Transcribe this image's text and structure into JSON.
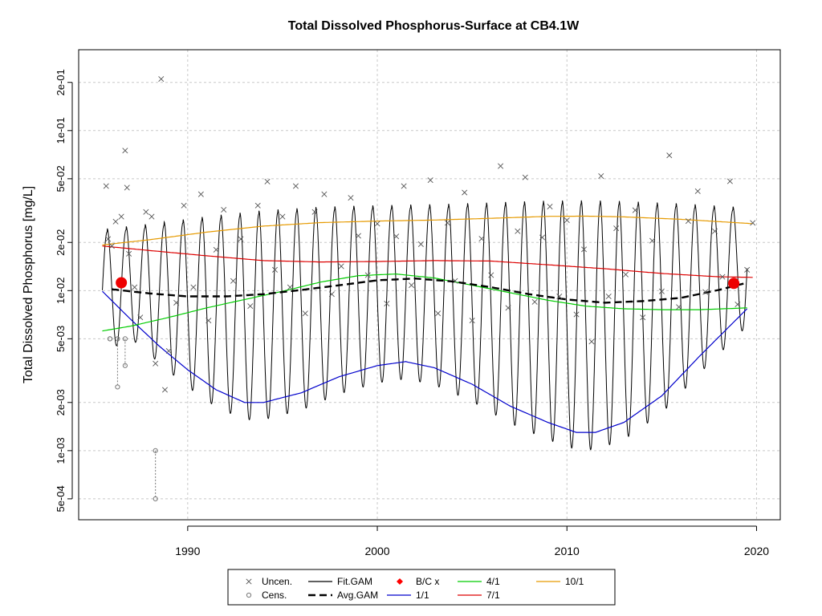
{
  "chart_data": {
    "type": "line",
    "title": "Total Dissolved Phosphorus-Surface at CB4.1W",
    "xlabel": "",
    "ylabel": "Total Dissolved Phosphorus [mg/L]",
    "y_scale": "log",
    "xlim": [
      1984.25,
      2021.25
    ],
    "ylim": [
      0.00037,
      0.32
    ],
    "x_ticks": [
      1990,
      2000,
      2010,
      2020
    ],
    "y_ticks": [
      {
        "value": 0.0005,
        "label": "5e-04"
      },
      {
        "value": 0.001,
        "label": "1e-03"
      },
      {
        "value": 0.002,
        "label": "2e-03"
      },
      {
        "value": 0.005,
        "label": "5e-03"
      },
      {
        "value": 0.01,
        "label": "1e-02"
      },
      {
        "value": 0.02,
        "label": "2e-02"
      },
      {
        "value": 0.05,
        "label": "5e-02"
      },
      {
        "value": 0.1,
        "label": "1e-01"
      },
      {
        "value": 0.2,
        "label": "2e-01"
      }
    ],
    "grid": true,
    "legend_position": "bottom",
    "legend": [
      {
        "label": "Uncen.",
        "kind": "x",
        "color": "#555555"
      },
      {
        "label": "Fit.GAM",
        "kind": "line",
        "color": "#000000"
      },
      {
        "label": "B/C x",
        "kind": "diamond",
        "color": "#ff0000"
      },
      {
        "label": "4/1",
        "kind": "line",
        "color": "#00cc00"
      },
      {
        "label": "10/1",
        "kind": "line",
        "color": "#e69a00"
      },
      {
        "label": "Cens.",
        "kind": "circle",
        "color": "#777777"
      },
      {
        "label": "Avg.GAM",
        "kind": "dash",
        "color": "#000000"
      },
      {
        "label": "1/1",
        "kind": "line",
        "color": "#0000cc"
      },
      {
        "label": "7/1",
        "kind": "line",
        "color": "#dd0000"
      }
    ],
    "series": [
      {
        "name": "1/1",
        "color": "#0000cc",
        "x": [
          1985.5,
          1987,
          1988.5,
          1990,
          1991.5,
          1993,
          1994,
          1996,
          1998,
          2000,
          2001.5,
          2003,
          2005,
          2007,
          2009,
          2010.5,
          2011.5,
          2013,
          2015,
          2017,
          2019.5
        ],
        "y": [
          0.0099,
          0.0066,
          0.0045,
          0.0032,
          0.0024,
          0.002,
          0.002,
          0.0023,
          0.0029,
          0.0034,
          0.0036,
          0.0033,
          0.0026,
          0.0019,
          0.0015,
          0.0013,
          0.0013,
          0.0015,
          0.0022,
          0.0039,
          0.0077
        ]
      },
      {
        "name": "4/1",
        "color": "#00cc00",
        "x": [
          1985.5,
          1987,
          1989,
          1991,
          1993,
          1995,
          1997,
          1999,
          2001,
          2003,
          2005,
          2007,
          2009,
          2011,
          2013,
          2015,
          2017,
          2019.5
        ],
        "y": [
          0.0056,
          0.006,
          0.0068,
          0.0078,
          0.0088,
          0.0099,
          0.0113,
          0.0124,
          0.0127,
          0.012,
          0.0108,
          0.0097,
          0.0087,
          0.008,
          0.0077,
          0.0076,
          0.0076,
          0.0078
        ]
      },
      {
        "name": "7/1",
        "color": "#dd0000",
        "x": [
          1985.5,
          1988,
          1991,
          1994,
          1997,
          2000,
          2003,
          2006,
          2009,
          2012,
          2015,
          2018,
          2019.8
        ],
        "y": [
          0.019,
          0.0178,
          0.0165,
          0.0154,
          0.0151,
          0.0152,
          0.0154,
          0.0153,
          0.0145,
          0.0137,
          0.0128,
          0.0122,
          0.0121
        ]
      },
      {
        "name": "10/1",
        "color": "#e69a00",
        "x": [
          1985.5,
          1988,
          1991,
          1994,
          1997,
          2000,
          2003,
          2006,
          2009,
          2011,
          2013,
          2016,
          2019.8
        ],
        "y": [
          0.0193,
          0.0208,
          0.0232,
          0.0253,
          0.0266,
          0.0272,
          0.0276,
          0.0283,
          0.0291,
          0.0292,
          0.0289,
          0.0279,
          0.0262
        ]
      },
      {
        "name": "Avg.GAM",
        "color": "#000000",
        "x": [
          1986,
          1988,
          1990,
          1992,
          1994,
          1996,
          1998,
          2000,
          2002,
          2004,
          2006,
          2008,
          2010,
          2012,
          2014,
          2016,
          2018,
          2019.5
        ],
        "y": [
          0.0102,
          0.0096,
          0.0092,
          0.0092,
          0.0095,
          0.0101,
          0.0108,
          0.0116,
          0.0119,
          0.0114,
          0.0105,
          0.0095,
          0.0088,
          0.0084,
          0.0086,
          0.009,
          0.0101,
          0.0112
        ]
      },
      {
        "name": "Fit.GAM",
        "color": "#000000",
        "peak_month": 10,
        "trough_month": 4
      }
    ],
    "bc_points": [
      {
        "x": 1986.5,
        "y": 0.0112
      },
      {
        "x": 2018.8,
        "y": 0.0111
      }
    ],
    "uncensored_points": [
      [
        1985.7,
        0.045
      ],
      [
        1985.8,
        0.021
      ],
      [
        1986.0,
        0.019
      ],
      [
        1986.2,
        0.027
      ],
      [
        1986.5,
        0.029
      ],
      [
        1986.7,
        0.075
      ],
      [
        1986.8,
        0.044
      ],
      [
        1986.9,
        0.017
      ],
      [
        1987.2,
        0.0105
      ],
      [
        1987.5,
        0.0068
      ],
      [
        1987.8,
        0.031
      ],
      [
        1988.1,
        0.029
      ],
      [
        1988.3,
        0.0035
      ],
      [
        1988.6,
        0.21
      ],
      [
        1988.8,
        0.0024
      ],
      [
        1989.0,
        0.0042
      ],
      [
        1989.4,
        0.0084
      ],
      [
        1989.8,
        0.034
      ],
      [
        1990.3,
        0.0105
      ],
      [
        1990.7,
        0.04
      ],
      [
        1991.1,
        0.0065
      ],
      [
        1991.5,
        0.018
      ],
      [
        1991.9,
        0.032
      ],
      [
        1992.4,
        0.0115
      ],
      [
        1992.8,
        0.021
      ],
      [
        1993.3,
        0.008
      ],
      [
        1993.7,
        0.034
      ],
      [
        1994.2,
        0.048
      ],
      [
        1994.6,
        0.0135
      ],
      [
        1995.0,
        0.029
      ],
      [
        1995.4,
        0.0105
      ],
      [
        1995.7,
        0.045
      ],
      [
        1996.2,
        0.0072
      ],
      [
        1996.7,
        0.031
      ],
      [
        1997.2,
        0.04
      ],
      [
        1997.6,
        0.0095
      ],
      [
        1998.1,
        0.0142
      ],
      [
        1998.6,
        0.038
      ],
      [
        1999.0,
        0.022
      ],
      [
        1999.5,
        0.0125
      ],
      [
        2000.0,
        0.0262
      ],
      [
        2000.5,
        0.0083
      ],
      [
        2001.0,
        0.0218
      ],
      [
        2001.4,
        0.045
      ],
      [
        2001.8,
        0.0108
      ],
      [
        2002.3,
        0.0195
      ],
      [
        2002.8,
        0.049
      ],
      [
        2003.2,
        0.0072
      ],
      [
        2003.7,
        0.0265
      ],
      [
        2004.1,
        0.0115
      ],
      [
        2004.6,
        0.041
      ],
      [
        2005.0,
        0.0065
      ],
      [
        2005.5,
        0.0211
      ],
      [
        2006.0,
        0.0125
      ],
      [
        2006.5,
        0.06
      ],
      [
        2006.9,
        0.0078
      ],
      [
        2007.4,
        0.0235
      ],
      [
        2007.8,
        0.051
      ],
      [
        2008.3,
        0.0085
      ],
      [
        2008.7,
        0.0215
      ],
      [
        2009.1,
        0.0335
      ],
      [
        2009.6,
        0.0092
      ],
      [
        2010.0,
        0.0275
      ],
      [
        2010.5,
        0.0071
      ],
      [
        2010.9,
        0.0181
      ],
      [
        2011.3,
        0.0048
      ],
      [
        2011.8,
        0.052
      ],
      [
        2012.2,
        0.0092
      ],
      [
        2012.6,
        0.0245
      ],
      [
        2013.1,
        0.0126
      ],
      [
        2013.6,
        0.0318
      ],
      [
        2014.0,
        0.0068
      ],
      [
        2014.5,
        0.0205
      ],
      [
        2015.0,
        0.0099
      ],
      [
        2015.4,
        0.07
      ],
      [
        2015.9,
        0.0079
      ],
      [
        2016.4,
        0.0272
      ],
      [
        2016.9,
        0.0418
      ],
      [
        2017.3,
        0.0098
      ],
      [
        2017.8,
        0.0235
      ],
      [
        2018.2,
        0.0122
      ],
      [
        2018.6,
        0.0482
      ],
      [
        2019.0,
        0.0082
      ],
      [
        2019.5,
        0.0135
      ],
      [
        2019.8,
        0.0265
      ]
    ],
    "censored_points": [
      {
        "x": 1985.9,
        "y": 0.005,
        "lo": 0.005
      },
      {
        "x": 1986.3,
        "y": 0.005,
        "lo": 0.0025
      },
      {
        "x": 1986.7,
        "y": 0.005,
        "lo": 0.0034
      },
      {
        "x": 1988.3,
        "y": 0.001,
        "lo": 0.0005
      }
    ]
  }
}
